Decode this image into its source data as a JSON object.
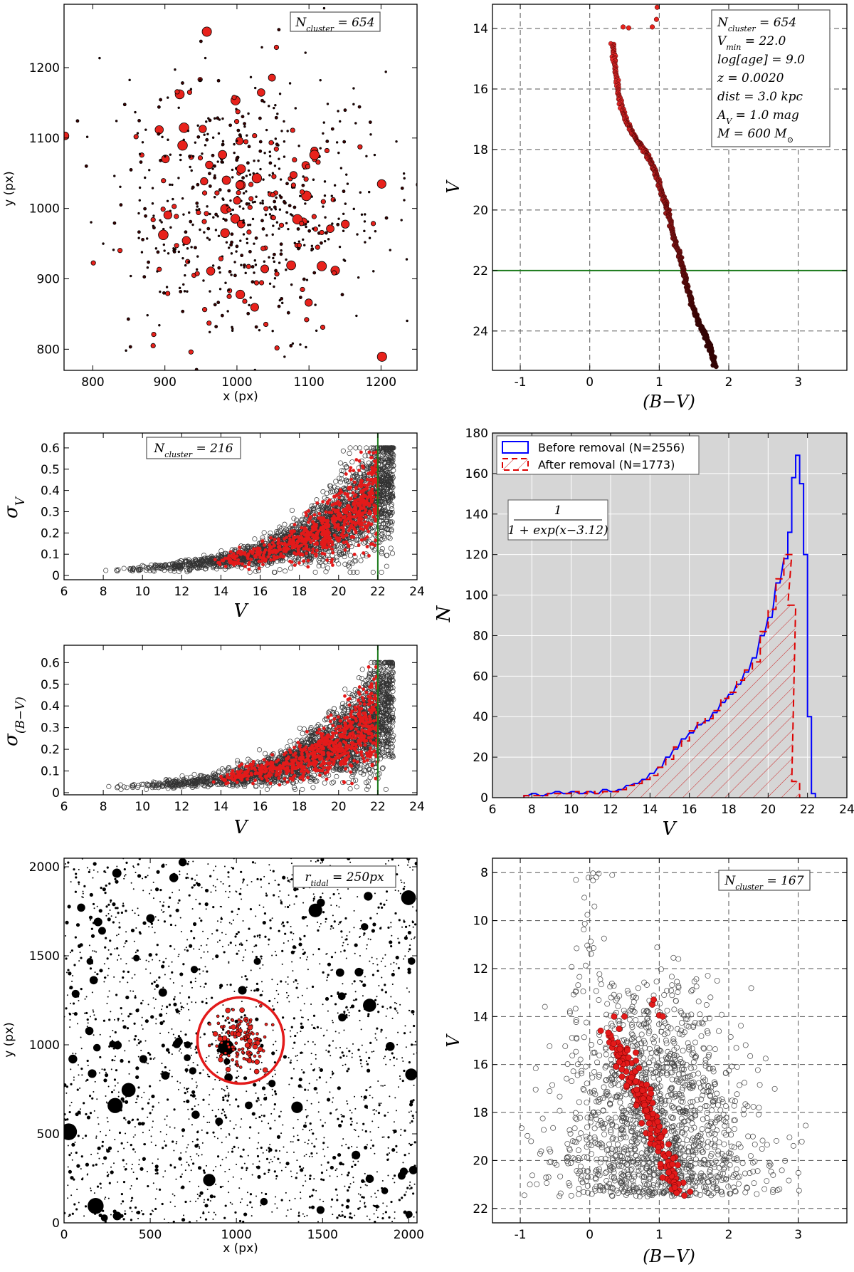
{
  "chart_data": [
    {
      "id": "p1",
      "type": "scatter",
      "title": "",
      "xlabel": "x (px)",
      "ylabel": "y (px)",
      "xlim": [
        760,
        1250
      ],
      "ylim": [
        770,
        1290
      ],
      "xticks": [
        800,
        900,
        1000,
        1100,
        1200
      ],
      "yticks": [
        800,
        900,
        1000,
        1100,
        1200
      ],
      "annotation": "N_cluster = 654",
      "series": [
        {
          "name": "cluster stars",
          "n": 654,
          "center": [
            1010,
            1000
          ],
          "spread": 95
        }
      ]
    },
    {
      "id": "p2",
      "type": "line",
      "xlabel": "(B−V)",
      "ylabel": "V",
      "xlim": [
        -1.4,
        3.7
      ],
      "ylim": [
        25.3,
        13.2
      ],
      "xticks": [
        -1,
        0,
        1,
        2,
        3
      ],
      "yticks": [
        14,
        16,
        18,
        20,
        22,
        24
      ],
      "hline": 22.0,
      "grid": true,
      "annotation_lines": [
        "N_cluster = 654",
        "V_min = 22.0",
        "log[age] = 9.0",
        "z = 0.0020",
        "dist = 3.0 kpc",
        "A_V = 1.0 mag",
        "M = 600 M_⊙"
      ],
      "isochrone": {
        "x": [
          0.33,
          0.35,
          0.38,
          0.42,
          0.47,
          0.53,
          0.6,
          0.68,
          0.75,
          0.83,
          0.9,
          0.97,
          1.03,
          1.09,
          1.14,
          1.2,
          1.27,
          1.33,
          1.4,
          1.47,
          1.55,
          1.63,
          1.7,
          1.75,
          1.8
        ],
        "y": [
          14.5,
          15.0,
          15.6,
          16.2,
          16.7,
          17.1,
          17.4,
          17.7,
          17.9,
          18.2,
          18.5,
          18.9,
          19.4,
          19.8,
          20.2,
          20.8,
          21.3,
          21.9,
          22.5,
          23.1,
          23.6,
          24.0,
          24.3,
          24.7,
          25.2
        ]
      },
      "bright": {
        "x": [
          0.48,
          0.56,
          0.9,
          0.96,
          0.97
        ],
        "y": [
          13.95,
          13.98,
          13.95,
          13.7,
          13.3
        ]
      }
    },
    {
      "id": "p3",
      "type": "scatter",
      "xlabel": "V",
      "ylabel": "σ_V",
      "xlim": [
        6,
        24
      ],
      "ylim": [
        -0.02,
        0.67
      ],
      "xticks": [
        6,
        8,
        10,
        12,
        14,
        16,
        18,
        20,
        22,
        24
      ],
      "yticks": [
        0.0,
        0.1,
        0.2,
        0.3,
        0.4,
        0.5,
        0.6
      ],
      "vline": 22.0,
      "annotation": "N_cluster = 216"
    },
    {
      "id": "p4",
      "type": "scatter",
      "xlabel": "V",
      "ylabel": "σ_(B−V)",
      "xlim": [
        6,
        24
      ],
      "ylim": [
        -0.01,
        0.68
      ],
      "xticks": [
        6,
        8,
        10,
        12,
        14,
        16,
        18,
        20,
        22,
        24
      ],
      "yticks": [
        0.0,
        0.1,
        0.2,
        0.3,
        0.4,
        0.5,
        0.6
      ],
      "vline": 22.0
    },
    {
      "id": "p5",
      "type": "bar",
      "xlabel": "V",
      "ylabel": "N",
      "xlim": [
        6,
        24
      ],
      "ylim": [
        0,
        180
      ],
      "xticks": [
        6,
        8,
        10,
        12,
        14,
        16,
        18,
        20,
        22,
        24
      ],
      "yticks": [
        0,
        20,
        40,
        60,
        80,
        100,
        120,
        140,
        160,
        180
      ],
      "formula_num": "1",
      "formula_den": "1 + exp(x−3.12)",
      "series": [
        {
          "name": "Before removal (N=2556)",
          "color": "#0000ff",
          "values": [
            [
              7.6,
              1
            ],
            [
              8.0,
              2
            ],
            [
              8.4,
              1
            ],
            [
              8.8,
              2
            ],
            [
              9.2,
              3
            ],
            [
              9.6,
              2
            ],
            [
              10.0,
              3
            ],
            [
              10.4,
              2
            ],
            [
              10.8,
              3
            ],
            [
              11.2,
              2
            ],
            [
              11.6,
              4
            ],
            [
              12.0,
              3
            ],
            [
              12.4,
              4
            ],
            [
              12.8,
              6
            ],
            [
              13.2,
              7
            ],
            [
              13.6,
              9
            ],
            [
              14.0,
              12
            ],
            [
              14.4,
              15
            ],
            [
              14.8,
              20
            ],
            [
              15.2,
              24
            ],
            [
              15.6,
              29
            ],
            [
              16.0,
              32
            ],
            [
              16.4,
              36
            ],
            [
              16.8,
              38
            ],
            [
              17.2,
              42
            ],
            [
              17.6,
              47
            ],
            [
              18.0,
              51
            ],
            [
              18.4,
              56
            ],
            [
              18.8,
              62
            ],
            [
              19.2,
              69
            ],
            [
              19.6,
              80
            ],
            [
              20.0,
              89
            ],
            [
              20.4,
              106
            ],
            [
              20.8,
              118
            ],
            [
              21.0,
              131
            ],
            [
              21.2,
              158
            ],
            [
              21.4,
              169
            ],
            [
              21.6,
              155
            ],
            [
              21.8,
              120
            ],
            [
              22.0,
              40
            ],
            [
              22.2,
              2
            ]
          ]
        },
        {
          "name": "After removal    (N=1773)",
          "color": "#dd0000",
          "values": [
            [
              7.6,
              1
            ],
            [
              8.0,
              1
            ],
            [
              8.4,
              1
            ],
            [
              8.8,
              2
            ],
            [
              9.2,
              2
            ],
            [
              9.6,
              2
            ],
            [
              10.0,
              3
            ],
            [
              10.4,
              2
            ],
            [
              10.8,
              3
            ],
            [
              11.2,
              2
            ],
            [
              11.6,
              3
            ],
            [
              12.0,
              3
            ],
            [
              12.4,
              4
            ],
            [
              12.8,
              6
            ],
            [
              13.2,
              7
            ],
            [
              13.6,
              9
            ],
            [
              14.0,
              11
            ],
            [
              14.4,
              15
            ],
            [
              14.8,
              19
            ],
            [
              15.2,
              25
            ],
            [
              15.6,
              28
            ],
            [
              16.0,
              33
            ],
            [
              16.4,
              37
            ],
            [
              16.8,
              39
            ],
            [
              17.2,
              43
            ],
            [
              17.6,
              49
            ],
            [
              18.0,
              52
            ],
            [
              18.4,
              58
            ],
            [
              18.8,
              63
            ],
            [
              19.2,
              67
            ],
            [
              19.6,
              82
            ],
            [
              20.0,
              93
            ],
            [
              20.4,
              108
            ],
            [
              20.8,
              120
            ],
            [
              21.0,
              95
            ],
            [
              21.2,
              8
            ]
          ]
        }
      ]
    },
    {
      "id": "p6",
      "type": "scatter",
      "xlabel": "x (px)",
      "ylabel": "y (px)",
      "xlim": [
        0,
        2048
      ],
      "ylim": [
        0,
        2048
      ],
      "xticks": [
        0,
        500,
        1000,
        1500,
        2000
      ],
      "yticks": [
        0,
        500,
        1000,
        1500,
        2000
      ],
      "annotation": "r_tidal = 250px",
      "circle": {
        "center": [
          1024,
          1024
        ],
        "radius": 250
      }
    },
    {
      "id": "p7",
      "type": "scatter",
      "xlabel": "(B−V)",
      "ylabel": "V",
      "xlim": [
        -1.4,
        3.7
      ],
      "ylim": [
        22.6,
        7.4
      ],
      "xticks": [
        -1,
        0,
        1,
        2,
        3
      ],
      "yticks": [
        8,
        10,
        12,
        14,
        16,
        18,
        20,
        22
      ],
      "grid": true,
      "annotation": "N_cluster = 167"
    }
  ]
}
